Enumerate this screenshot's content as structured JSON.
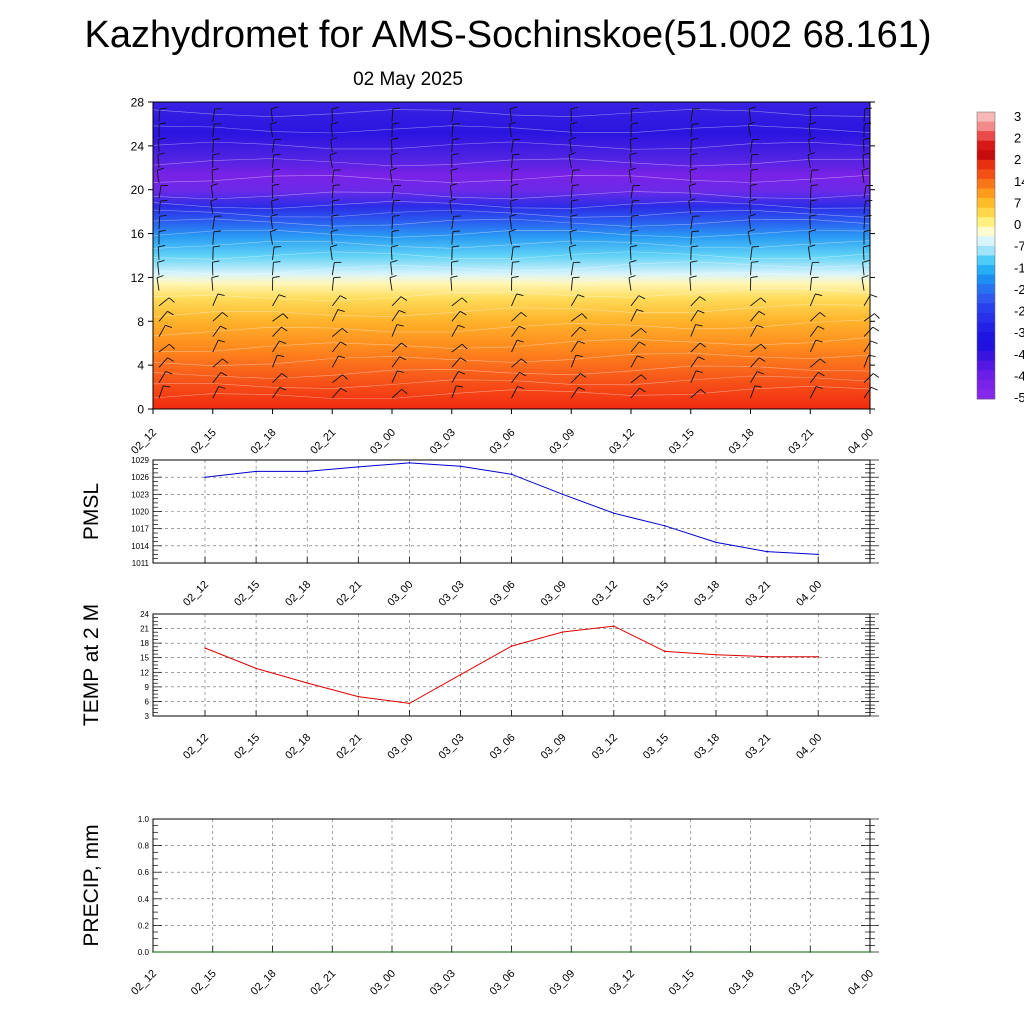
{
  "header": {
    "title": "Kazhydromet for AMS-Sochinskoe(51.002 68.161)",
    "subtitle": "02 May 2025"
  },
  "time_labels": [
    "02_12",
    "02_15",
    "02_18",
    "02_21",
    "03_00",
    "03_03",
    "03_06",
    "03_09",
    "03_12",
    "03_15",
    "03_18",
    "03_21",
    "04_00"
  ],
  "chart_data": [
    {
      "type": "heatmap",
      "name": "cross-section",
      "x": [
        "02_12",
        "02_15",
        "02_18",
        "02_21",
        "03_00",
        "03_03",
        "03_06",
        "03_09",
        "03_12",
        "03_15",
        "03_18",
        "03_21",
        "04_00"
      ],
      "ylim": [
        0,
        28
      ],
      "yticks": [
        "0",
        "4",
        "8",
        "12",
        "16",
        "20",
        "24",
        "28"
      ],
      "colorbar_labels": [
        "3",
        "2",
        "2",
        "14",
        "7",
        "0",
        "-7",
        "-1",
        "-2",
        "-2",
        "-3",
        "-4",
        "-4",
        "-5"
      ],
      "colorbar_colors": [
        "#f4a6a6",
        "#e8484a",
        "#d40f10",
        "#f36a14",
        "#ffa31a",
        "#ffd23a",
        "#fff59a",
        "#bfeefc",
        "#38c8f3",
        "#1c97f2",
        "#2d5cf0",
        "#1e24e8",
        "#1a10d8",
        "#7a1fe6"
      ],
      "wind_barbs": true
    },
    {
      "type": "line",
      "name": "pmsl",
      "ylabel": "PMSL",
      "ylim": [
        1011,
        1029
      ],
      "yticks": [
        "1011",
        "1014",
        "1017",
        "1020",
        "1023",
        "1026",
        "1029"
      ],
      "x": [
        "02_12",
        "02_15",
        "02_18",
        "02_21",
        "03_00",
        "03_03",
        "03_06",
        "03_09",
        "03_12",
        "03_15",
        "03_18",
        "03_21",
        "04_00"
      ],
      "values": [
        1026.0,
        1027.0,
        1027.0,
        1027.8,
        1028.5,
        1027.9,
        1026.5,
        1023.0,
        1019.7,
        1017.5,
        1014.6,
        1013.0,
        1012.5
      ],
      "color": "#0000cc",
      "grid": true
    },
    {
      "type": "line",
      "name": "temp2m",
      "ylabel": "TEMP at 2 M",
      "ylim": [
        3,
        24
      ],
      "yticks": [
        "3",
        "6",
        "9",
        "12",
        "15",
        "18",
        "21",
        "24"
      ],
      "x": [
        "02_12",
        "02_15",
        "02_18",
        "02_21",
        "03_00",
        "03_03",
        "03_06",
        "03_09",
        "03_12",
        "03_15",
        "03_18",
        "03_21",
        "04_00"
      ],
      "values": [
        17.0,
        12.8,
        9.8,
        7.0,
        5.6,
        11.5,
        17.4,
        20.3,
        21.5,
        16.3,
        15.6,
        15.2,
        15.2
      ],
      "color": "#dd0000",
      "grid": true
    },
    {
      "type": "line",
      "name": "precip",
      "ylabel": "PRECIP, mm",
      "ylim": [
        0,
        1.0
      ],
      "yticks": [
        "0.0",
        "0.2",
        "0.4",
        "0.6",
        "0.8",
        "1.0"
      ],
      "x": [
        "02_12",
        "02_15",
        "02_18",
        "02_21",
        "03_00",
        "03_03",
        "03_06",
        "03_09",
        "03_12",
        "03_15",
        "03_18",
        "03_21",
        "04_00"
      ],
      "values": [
        0,
        0,
        0,
        0,
        0,
        0,
        0,
        0,
        0,
        0,
        0,
        0,
        0
      ],
      "color": "#006400",
      "grid": true
    }
  ]
}
